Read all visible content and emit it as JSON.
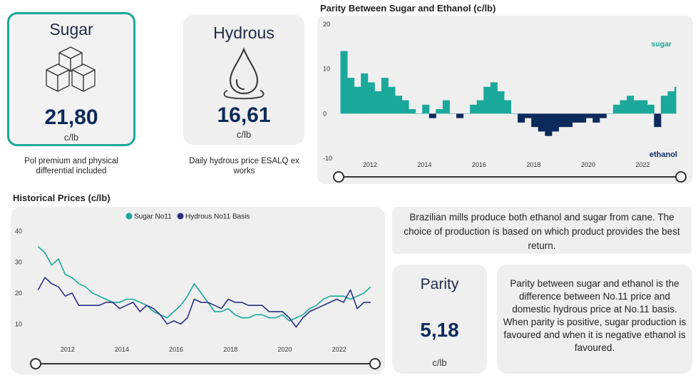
{
  "sugar_card": {
    "title": "Sugar",
    "value": "21,80",
    "unit": "c/lb",
    "caption": "Pol premium and physical differential included"
  },
  "hydrous_card": {
    "title": "Hydrous",
    "value": "16,61",
    "unit": "c/lb",
    "caption": "Daily hydrous price ESALQ ex works"
  },
  "parity_card": {
    "title": "Parity",
    "value": "5,18",
    "unit": "c/lb"
  },
  "info_text": "Brazilian mills produce both ethanol and sugar from cane. The choice of production is based on which product provides the best return.",
  "parity_text": "Parity between sugar and ethanol is the difference between No.11 price and domestic hydrous price at No.11 basis. When parity is positive, sugar production is favoured and when it is negative ethanol is favoured.",
  "colors": {
    "sugar": "#1aa89a",
    "hydrous": "#2b2f82",
    "ethanol": "#0c2a5b",
    "accent_border": "#1aa89a"
  },
  "chart_data": [
    {
      "type": "area",
      "title": "Parity Between Sugar and Ethanol (c/lb)",
      "annotations": [
        "sugar",
        "ethanol"
      ],
      "ylim": [
        -10,
        20
      ],
      "yticks": [
        "20",
        "10",
        "0",
        "-10"
      ],
      "xticks": [
        "2012",
        "2014",
        "2016",
        "2018",
        "2020",
        "2022"
      ],
      "x": [
        "2010-12",
        "2011-03",
        "2011-06",
        "2011-09",
        "2011-12",
        "2012-03",
        "2012-06",
        "2012-09",
        "2012-12",
        "2013-03",
        "2013-06",
        "2013-09",
        "2013-12",
        "2014-03",
        "2014-06",
        "2014-09",
        "2014-12",
        "2015-03",
        "2015-06",
        "2015-09",
        "2015-12",
        "2016-03",
        "2016-06",
        "2016-09",
        "2016-12",
        "2017-03",
        "2017-06",
        "2017-09",
        "2017-12",
        "2018-03",
        "2018-06",
        "2018-09",
        "2018-12",
        "2019-03",
        "2019-06",
        "2019-09",
        "2019-12",
        "2020-03",
        "2020-06",
        "2020-09",
        "2020-12",
        "2021-03",
        "2021-06",
        "2021-09",
        "2021-12",
        "2022-03",
        "2022-06",
        "2022-09",
        "2022-12",
        "2023-03"
      ],
      "values": [
        14,
        8,
        6,
        9,
        7,
        5,
        8,
        6,
        4,
        3,
        1,
        0,
        2,
        -1,
        1,
        3,
        0,
        -1,
        0,
        2,
        3,
        6,
        7,
        5,
        3,
        0,
        -2,
        -1,
        -3,
        -4,
        -5,
        -4,
        -3,
        -3,
        -2,
        -2,
        -1,
        -2,
        -1,
        0,
        2,
        3,
        4,
        3,
        3,
        2,
        -3,
        4,
        5,
        6
      ],
      "grid": false
    },
    {
      "type": "line",
      "title": "Historical Prices (c/lb)",
      "ylim": [
        5,
        40
      ],
      "yticks": [
        "40",
        "30",
        "20",
        "10"
      ],
      "xticks": [
        "2012",
        "2014",
        "2016",
        "2018",
        "2020",
        "2022"
      ],
      "legend_position": "top-center",
      "x": [
        "2010-12",
        "2011-03",
        "2011-06",
        "2011-09",
        "2011-12",
        "2012-03",
        "2012-06",
        "2012-09",
        "2012-12",
        "2013-03",
        "2013-06",
        "2013-09",
        "2013-12",
        "2014-03",
        "2014-06",
        "2014-09",
        "2014-12",
        "2015-03",
        "2015-06",
        "2015-09",
        "2015-12",
        "2016-03",
        "2016-06",
        "2016-09",
        "2016-12",
        "2017-03",
        "2017-06",
        "2017-09",
        "2017-12",
        "2018-03",
        "2018-06",
        "2018-09",
        "2018-12",
        "2019-03",
        "2019-06",
        "2019-09",
        "2019-12",
        "2020-03",
        "2020-06",
        "2020-09",
        "2020-12",
        "2021-03",
        "2021-06",
        "2021-09",
        "2021-12",
        "2022-03",
        "2022-06",
        "2022-09",
        "2022-12",
        "2023-03"
      ],
      "series": [
        {
          "name": "Sugar No11",
          "values": [
            35,
            33,
            29,
            31,
            26,
            25,
            23,
            22,
            20,
            19,
            18,
            17,
            17,
            18,
            18,
            17,
            16,
            14,
            13,
            12,
            14,
            16,
            19,
            23,
            20,
            17,
            14,
            14,
            15,
            13,
            12,
            12,
            13,
            13,
            12,
            12,
            13,
            11,
            12,
            13,
            15,
            16,
            18,
            19,
            19,
            19,
            18,
            19,
            20,
            22
          ]
        },
        {
          "name": "Hydrous No11 Basis",
          "values": [
            21,
            25,
            23,
            22,
            19,
            20,
            16,
            16,
            16,
            16,
            17,
            17,
            15,
            16,
            17,
            14,
            16,
            15,
            13,
            10,
            11,
            10,
            12,
            18,
            17,
            17,
            16,
            15,
            18,
            17,
            17,
            16,
            16,
            16,
            14,
            14,
            14,
            12,
            9,
            12,
            14,
            15,
            16,
            17,
            18,
            17,
            21,
            15,
            17,
            17
          ]
        }
      ],
      "grid": false
    }
  ]
}
